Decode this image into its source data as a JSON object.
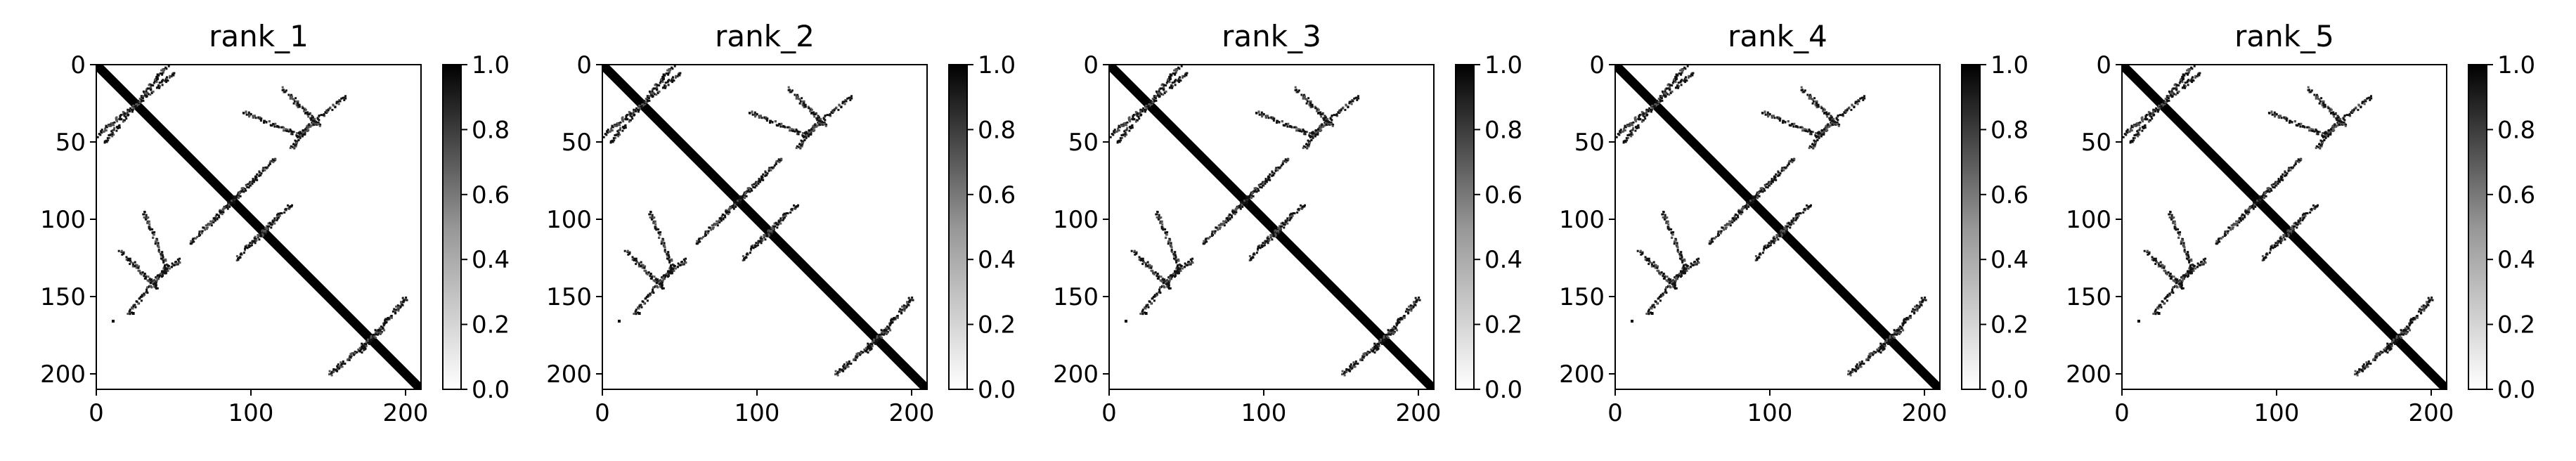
{
  "chart_data": {
    "type": "heatmap",
    "colormap": "Greys",
    "value_range": [
      0,
      1
    ],
    "matrix_size": 210,
    "panels": [
      {
        "title": "rank_1"
      },
      {
        "title": "rank_2"
      },
      {
        "title": "rank_3"
      },
      {
        "title": "rank_4"
      },
      {
        "title": "rank_5"
      }
    ],
    "x_axis": {
      "ticks": [
        0,
        100,
        200
      ],
      "tick_labels": [
        "0",
        "100",
        "200"
      ]
    },
    "y_axis": {
      "ticks": [
        0,
        50,
        100,
        150,
        200
      ],
      "tick_labels": [
        "0",
        "50",
        "100",
        "150",
        "200"
      ]
    },
    "colorbar": {
      "ticks": [
        0.0,
        0.2,
        0.4,
        0.6,
        0.8,
        1.0
      ],
      "tick_labels": [
        "0.0",
        "0.2",
        "0.4",
        "0.6",
        "0.8",
        "1.0"
      ]
    },
    "features": {
      "main_diagonal_band": {
        "from": 0,
        "to": 210,
        "value": 1.0
      },
      "antidiagonal_contacts": [
        {
          "i": [
            0,
            50
          ],
          "j": [
            45,
            5
          ]
        },
        {
          "i": [
            35,
            55
          ],
          "j": [
            140,
            125
          ]
        },
        {
          "i": [
            60,
            95
          ],
          "j": [
            115,
            80
          ]
        },
        {
          "i": [
            100,
            125
          ],
          "j": [
            115,
            90
          ]
        },
        {
          "i": [
            150,
            185
          ],
          "j": [
            200,
            170
          ]
        },
        {
          "i": [
            130,
            160
          ],
          "j": [
            45,
            20
          ]
        }
      ],
      "parallel_contacts": [
        {
          "i": [
            15,
            40
          ],
          "j": [
            120,
            145
          ]
        },
        {
          "i": [
            95,
            130
          ],
          "j": [
            30,
            45
          ]
        }
      ]
    }
  }
}
